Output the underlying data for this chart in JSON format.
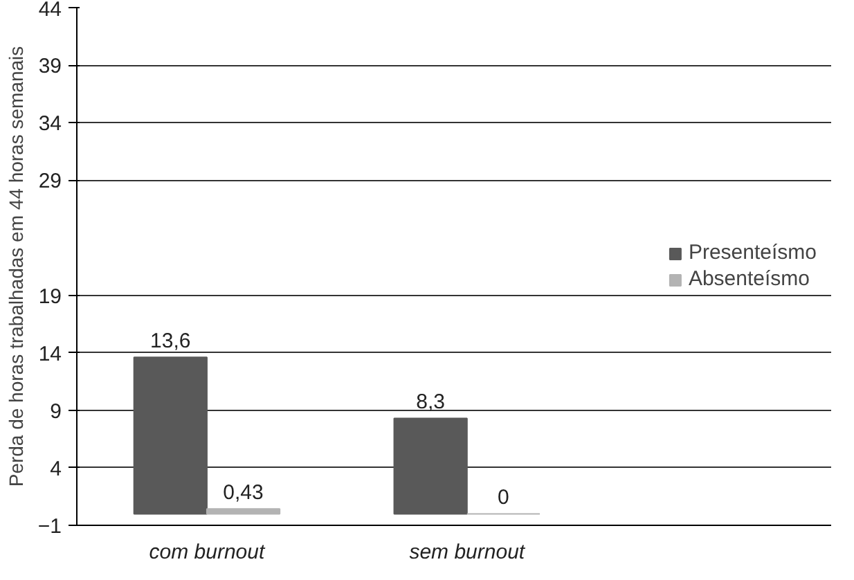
{
  "chart_data": {
    "type": "bar",
    "ylabel": "Perda de horas trabalhadas em 44 horas semanais",
    "categories": [
      "com burnout",
      "sem burnout"
    ],
    "series": [
      {
        "name": "Presenteísmo",
        "color": "#595959",
        "values": [
          13.6,
          8.3
        ],
        "value_labels": [
          "13,6",
          "8,3"
        ]
      },
      {
        "name": "Absenteísmo",
        "color": "#b3b3b3",
        "values": [
          0.43,
          0
        ],
        "value_labels": [
          "0,43",
          "0"
        ]
      }
    ],
    "ylim": [
      -1,
      44
    ],
    "yticks": [
      -1,
      4,
      9,
      14,
      19,
      29,
      34,
      39,
      44
    ],
    "grid": "y",
    "legend": "right"
  }
}
